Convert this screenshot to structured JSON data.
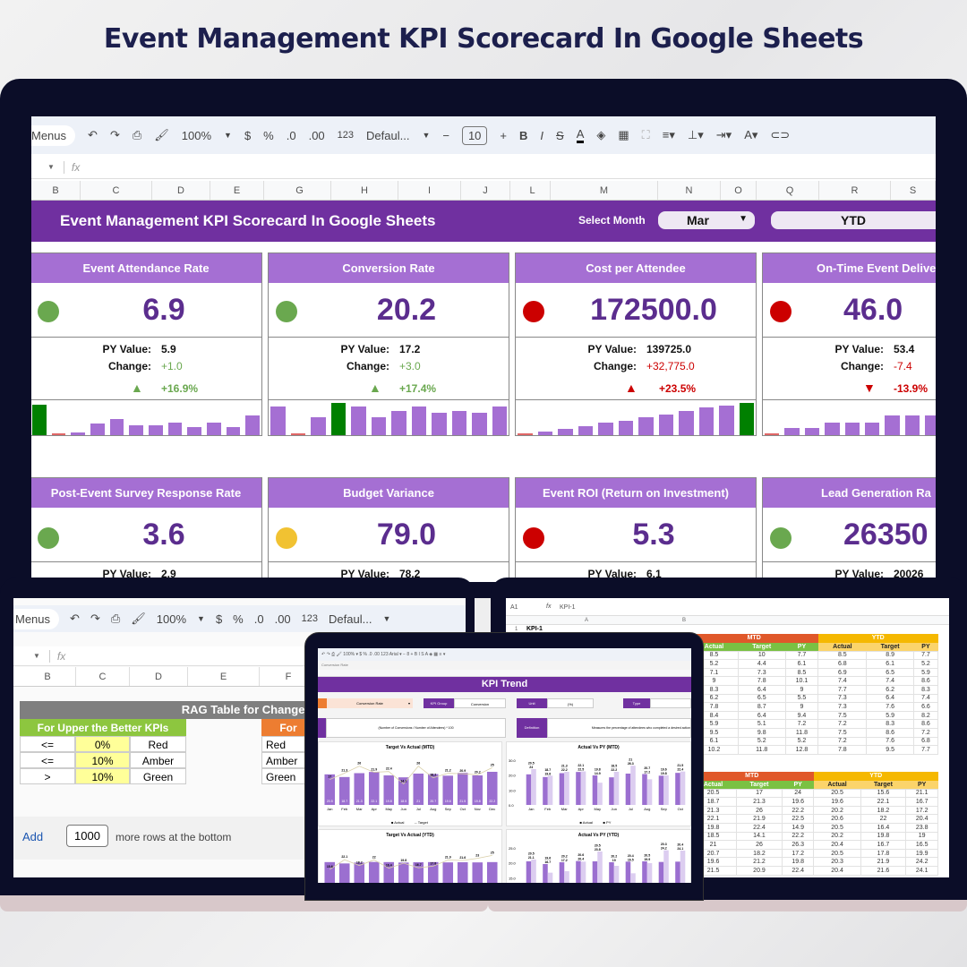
{
  "page_title": "Event Management KPI Scorecard In Google Sheets",
  "main_sheet": {
    "toolbar": {
      "menus": "Menus",
      "zoom": "100%",
      "currency": "$",
      "percent": "%",
      "dec_less": ".0",
      "dec_more": ".00",
      "format_123": "123",
      "font": "Defaul...",
      "font_size": "10",
      "bold": "B",
      "italic": "I",
      "strike": "S",
      "text_color": "A"
    },
    "formula_bar": {
      "fx": "fx"
    },
    "columns": [
      "B",
      "C",
      "D",
      "E",
      "G",
      "H",
      "I",
      "J",
      "L",
      "M",
      "N",
      "O",
      "Q",
      "R",
      "S"
    ],
    "banner": {
      "title": "Event Management KPI Scorecard In Google Sheets",
      "select_month_label": "Select Month",
      "month": "Mar",
      "period": "YTD"
    },
    "labels": {
      "py": "PY Value:",
      "change": "Change:"
    },
    "cards": [
      {
        "title": "Event Attendance Rate",
        "value": "6.9",
        "status": "#6aa84f",
        "py": "5.9",
        "change": "+1.0",
        "pct": "+16.9%",
        "dir": "up",
        "trend_color": "#6aa84f",
        "spark": [
          0.95,
          0.02,
          0.08,
          0.35,
          0.5,
          0.3,
          0.3,
          0.4,
          0.25,
          0.4,
          0.25,
          0.6
        ],
        "spark_hi": 0,
        "spark_lo": 1
      },
      {
        "title": "Conversion Rate",
        "value": "20.2",
        "status": "#6aa84f",
        "py": "17.2",
        "change": "+3.0",
        "pct": "+17.4%",
        "dir": "up",
        "trend_color": "#6aa84f",
        "spark": [
          0.9,
          0.02,
          0.55,
          1.0,
          0.9,
          0.55,
          0.75,
          0.9,
          0.7,
          0.75,
          0.7,
          0.9
        ],
        "spark_hi": 3,
        "spark_lo": 1
      },
      {
        "title": "Cost per Attendee",
        "value": "172500.0",
        "status": "#cc0000",
        "py": "139725.0",
        "change": "+32,775.0",
        "pct": "+23.5%",
        "dir": "up",
        "trend_color": "#cc0000",
        "spark": [
          0.02,
          0.1,
          0.2,
          0.28,
          0.38,
          0.45,
          0.55,
          0.65,
          0.75,
          0.85,
          0.92,
          1.0
        ],
        "spark_hi": 11,
        "spark_lo": 0
      },
      {
        "title": "On-Time Event Delive",
        "value": "46.0",
        "status": "#cc0000",
        "py": "53.4",
        "change": "-7.4",
        "pct": "-13.9%",
        "dir": "down",
        "trend_color": "#cc0000",
        "spark": [
          0.02,
          0.22,
          0.22,
          0.4,
          0.4,
          0.4,
          0.6,
          0.6,
          0.6,
          0.6
        ],
        "spark_hi": -1,
        "spark_lo": 0
      },
      {
        "title": "Post-Event Survey Response Rate",
        "value": "3.6",
        "status": "#6aa84f",
        "py": "2.9"
      },
      {
        "title": "Budget Variance",
        "value": "79.0",
        "status": "#f1c232",
        "py": "78.2"
      },
      {
        "title": "Event ROI (Return on Investment)",
        "value": "5.3",
        "status": "#cc0000",
        "py": "6.1"
      },
      {
        "title": "Lead Generation Ra",
        "value": "26350",
        "status": "#6aa84f",
        "py": "20026"
      }
    ]
  },
  "rag_sheet": {
    "toolbar": {
      "menus": "Menus",
      "zoom": "100%",
      "currency": "$",
      "percent": "%",
      "dec_less": ".0",
      "dec_more": ".00",
      "format_123": "123",
      "font": "Defaul..."
    },
    "columns": [
      "B",
      "C",
      "D",
      "E",
      "F"
    ],
    "title": "RAG Table for Change%",
    "upper_header": "For Upper the Better KPIs",
    "lower_header": "For",
    "rows": [
      {
        "op": "<=",
        "threshold": "0%",
        "status": "Red"
      },
      {
        "op": "<=",
        "threshold": "10%",
        "status": "Amber"
      },
      {
        "op": ">",
        "threshold": "10%",
        "status": "Green"
      }
    ],
    "add_rows": {
      "button": "Add",
      "count": "1000",
      "suffix": "more rows at the bottom"
    }
  },
  "data_sheet": {
    "cell_ref": "A1",
    "formula": "KPI-1",
    "col_a": "A",
    "col_b": "B",
    "row1": "KPI-1",
    "row_num": "1",
    "group_headers": [
      "MTD",
      "YTD"
    ],
    "col_headers": [
      "Actual",
      "Target",
      "PY",
      "Actual",
      "Target",
      "PY"
    ],
    "table1": [
      [
        "8.5",
        "10",
        "7.7",
        "8.5",
        "8.9",
        "7.7"
      ],
      [
        "5.2",
        "4.4",
        "6.1",
        "6.8",
        "6.1",
        "5.2"
      ],
      [
        "7.1",
        "7.3",
        "8.5",
        "6.9",
        "6.5",
        "5.9"
      ],
      [
        "9",
        "7.8",
        "10.1",
        "7.4",
        "7.4",
        "8.6"
      ],
      [
        "8.3",
        "6.4",
        "9",
        "7.7",
        "6.2",
        "8.3"
      ],
      [
        "6.2",
        "6.5",
        "5.5",
        "7.3",
        "6.4",
        "7.4"
      ],
      [
        "7.8",
        "8.7",
        "9",
        "7.3",
        "7.6",
        "6.6"
      ],
      [
        "8.4",
        "6.4",
        "9.4",
        "7.5",
        "5.9",
        "8.2"
      ],
      [
        "5.9",
        "5.1",
        "7.2",
        "7.2",
        "8.3",
        "8.6"
      ],
      [
        "9.5",
        "9.8",
        "11.8",
        "7.5",
        "8.6",
        "7.2"
      ],
      [
        "6.1",
        "5.2",
        "5.2",
        "7.2",
        "7.6",
        "6.8"
      ],
      [
        "10.2",
        "11.8",
        "12.8",
        "7.8",
        "9.5",
        "7.7"
      ]
    ],
    "table2": [
      [
        "20.5",
        "17",
        "24",
        "20.5",
        "15.6",
        "21.1"
      ],
      [
        "18.7",
        "21.3",
        "19.6",
        "19.6",
        "22.1",
        "16.7"
      ],
      [
        "21.3",
        "26",
        "22.2",
        "20.2",
        "18.2",
        "17.2"
      ],
      [
        "22.1",
        "21.9",
        "22.5",
        "20.6",
        "22",
        "20.4"
      ],
      [
        "19.8",
        "22.4",
        "14.9",
        "20.5",
        "16.4",
        "23.8"
      ],
      [
        "18.5",
        "14.1",
        "22.2",
        "20.2",
        "19.8",
        "19"
      ],
      [
        "21",
        "26",
        "26.3",
        "20.4",
        "16.7",
        "16.5"
      ],
      [
        "20.7",
        "18.2",
        "17.2",
        "20.5",
        "17.8",
        "19.9"
      ],
      [
        "19.6",
        "21.2",
        "19.8",
        "20.3",
        "21.9",
        "24.2"
      ],
      [
        "21.5",
        "20.9",
        "22.4",
        "20.4",
        "21.6",
        "24.1"
      ]
    ]
  },
  "kpi_trend": {
    "cell_label": "Conversion Rate",
    "title": "KPI Trend",
    "kpi_select": "Conversion Rate",
    "kpi_group_label": "KPI Group",
    "kpi_group": "Conversion",
    "unit_label": "Unit",
    "unit": "(%)",
    "type_label": "Type",
    "formula": "(Number of Conversions / Number of Attendees) * 100",
    "definition_label": "Definition",
    "definition": "Measures the percentage of attendees who completed a desired action",
    "chart_data": [
      {
        "type": "bar",
        "title": "Target Vs Actual (MTD)",
        "categories": [
          "Jan",
          "Feb",
          "Mar",
          "Apr",
          "May",
          "Jun",
          "Jul",
          "Aug",
          "Sep",
          "Oct",
          "Nov",
          "Dec"
        ],
        "series": [
          {
            "name": "Actual",
            "kind": "bar",
            "values": [
              20.5,
              18.7,
              21.3,
              22.1,
              19.8,
              18.5,
              21,
              20.7,
              19.6,
              21.5,
              19.8,
              22.2
            ]
          },
          {
            "name": "Target",
            "kind": "line",
            "values": [
              17,
              21.3,
              26,
              21.9,
              22.4,
              14.1,
              26,
              18.2,
              21.2,
              20.9,
              20.2,
              25
            ]
          }
        ],
        "legend": "bottom"
      },
      {
        "type": "bar",
        "title": "Actual Vs PY (MTD)",
        "categories": [
          "Jan",
          "Feb",
          "Mar",
          "Apr",
          "May",
          "Jun",
          "Jul",
          "Aug",
          "Sep",
          "Oct"
        ],
        "series": [
          {
            "name": "Actual",
            "values": [
              20.5,
              18.7,
              21.3,
              22.1,
              19.8,
              18.5,
              21,
              20.7,
              19.6,
              21.5
            ]
          },
          {
            "name": "PY",
            "values": [
              24,
              19.6,
              22.2,
              22.5,
              14.9,
              22.2,
              26.3,
              17.2,
              19.8,
              22.4
            ]
          }
        ],
        "yticks": [
          "0.0",
          "10.0",
          "20.0",
          "30.0"
        ],
        "ylim": [
          0,
          30
        ],
        "legend": "bottom"
      },
      {
        "type": "bar",
        "title": "Target Vs Actual (YTD)",
        "categories": [
          "Jan",
          "Feb",
          "Mar",
          "Apr",
          "May",
          "Jun",
          "Jul",
          "Aug",
          "Sep",
          "Oct",
          "Nov",
          "Dec"
        ],
        "series": [
          {
            "name": "Actual",
            "kind": "bar",
            "values": [
              20.5,
              19.6,
              20.2,
              20.6,
              20.5,
              20.2,
              20.4,
              20.5,
              20.3,
              20.4,
              20.3,
              20.5
            ]
          },
          {
            "name": "Target",
            "kind": "line",
            "values": [
              15.6,
              22.1,
              18.2,
              22,
              16.4,
              19.8,
              16.7,
              17.8,
              21.9,
              21.6,
              23,
              25
            ]
          }
        ]
      },
      {
        "type": "bar",
        "title": "Actual Vs PY (YTD)",
        "categories": [
          "Jan",
          "Feb",
          "Mar",
          "Apr",
          "May",
          "Jun",
          "Jul",
          "Aug",
          "Sep",
          "Oct"
        ],
        "series": [
          {
            "name": "Actual",
            "values": [
              20.5,
              19.6,
              20.2,
              20.6,
              20.5,
              20.2,
              20.4,
              20.5,
              20.3,
              20.4
            ]
          },
          {
            "name": "PY",
            "values": [
              21.1,
              16.7,
              17.2,
              20.4,
              23.8,
              19,
              16.5,
              19.9,
              24.2,
              24.1
            ]
          }
        ],
        "yticks": [
          "10.0",
          "15.0",
          "20.0",
          "25.0"
        ],
        "ylim": [
          10,
          25
        ]
      }
    ]
  },
  "colors": {
    "brand_purple": "#7030a0",
    "card_header": "#a56fd3",
    "value": "#5b2d8e",
    "bar": "#a56fd3",
    "bar_hi": "#008000",
    "bar_lo": "#e06666",
    "mtd": "#e0582a",
    "ytd": "#f5b800",
    "sub_green": "#7ac143",
    "ytd_sub": "#fbd46b",
    "frame": "#0b0d28"
  }
}
